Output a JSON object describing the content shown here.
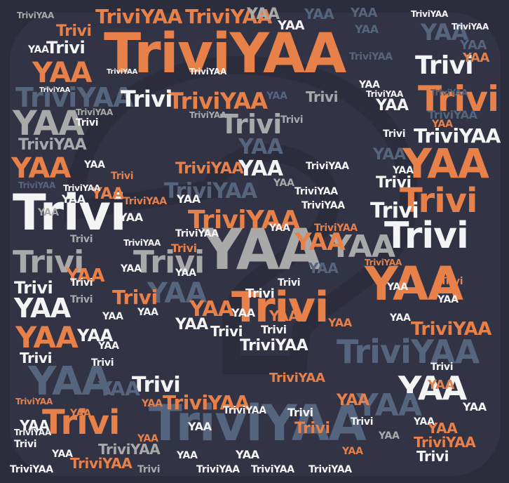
{
  "palette": {
    "background": "#2b2d3d",
    "shape": "#323446",
    "orange": "#e8804a",
    "white": "#f4f4f4",
    "gray": "#a9a9a9",
    "slate": "#56657e"
  },
  "words": {
    "w0": "TriviYAA",
    "w1": "Trivi",
    "w2": "YAA",
    "w3": "TriviYAA",
    "w4": "Trivi",
    "w5": "YAA",
    "w6": "Trivi",
    "w7": "YAA",
    "w8": "TriviYAA",
    "w9": "YAA",
    "w10": "Trivi",
    "w11": "YAA",
    "w12": "Trivi",
    "w13": "YAA",
    "w14": "YAA",
    "w15": "TriviYAA",
    "w16": "TriviYAA",
    "w17": "Trivi",
    "w18": "YAA",
    "w19": "TriviYAA",
    "w20": "TriviYAA",
    "w21": "YAA",
    "w22": "Trivi",
    "w23": "YAA",
    "w24": "YAA",
    "w25": "TriviYAA",
    "w26": "Trivi",
    "w27": "YAA",
    "w28": "Trivi",
    "w29": "YAA",
    "w30": "YAA",
    "w31": "TriviYAA",
    "w32": "Trivi",
    "w33": "YAA",
    "w34": "Trivi",
    "w35": "TriviYAA",
    "w36": "YAA",
    "w37": "YAA",
    "w38": "Trivi",
    "w39": "TriviYAA",
    "w40": "YAA",
    "w41": "TriviYAA",
    "w42": "Trivi",
    "w43": "YAA",
    "w44": "TriviYAA",
    "w45": "YAA",
    "w46": "Trivi",
    "w47": "YAA",
    "w48": "Trivi",
    "w49": "YAA",
    "w50": "TriviYAA",
    "w51": "Trivi",
    "w52": "YAA",
    "w53": "TriviYAA",
    "w54": "YAA",
    "w55": "TriviYAA",
    "w56": "Trivi",
    "w57": "YAA",
    "w58": "TriviYAA",
    "w59": "Trivi",
    "w60": "YAA",
    "w61": "YAA",
    "w62": "TriviYAA",
    "w63": "Trivi",
    "w64": "YAA",
    "w65": "TriviYAA",
    "w66": "YAA",
    "w67": "Trivi",
    "w68": "YAA",
    "w69": "Trivi",
    "w70": "TriviYAA",
    "w71": "YAA",
    "w72": "Trivi",
    "w73": "YAA",
    "w74": "YAA",
    "w75": "Trivi",
    "w76": "TriviYAA",
    "w77": "YAA",
    "w78": "Trivi",
    "w79": "TriviYAA",
    "w80": "YAA",
    "w81": "TriviYAA",
    "w82": "Trivi",
    "w83": "YAA",
    "w84": "YAA",
    "w85": "Trivi",
    "w86": "TriviYAA",
    "w87": "YAA",
    "w88": "Trivi",
    "w89": "TriviYAA",
    "w90": "Trivi",
    "w91": "YAA",
    "w92": "TriviYAA",
    "w93": "YAA",
    "w94": "Trivi",
    "w95": "TriviYAA",
    "w96": "TriviYAA",
    "w97": "YAA",
    "w98": "TriviYAA",
    "w99": "Trivi",
    "w100": "YAA",
    "w101": "TriviYAA",
    "w102": "YAA",
    "w103": "YAA",
    "w104": "TriviYAA",
    "w105": "TriviYAA",
    "w106": "YAA",
    "w107": "Trivi",
    "w108": "YAA",
    "w109": "YAA",
    "w110": "Trivi",
    "w111": "YAA",
    "w112": "TriviYAA",
    "w113": "YAA",
    "w114": "Trivi",
    "w115": "YAA",
    "w116": "YAA",
    "w117": "Trivi",
    "w118": "TriviYAA",
    "w119": "YAA",
    "w120": "TriviYAA",
    "w121": "TriviYAA",
    "w122": "YAA",
    "w123": "Trivi",
    "w124": "YAA",
    "w125": "TriviYAA",
    "w126": "TriviYAA",
    "w127": "TriviYAA",
    "w128": "YAA",
    "w129": "YAA",
    "w130": "TriviYAA",
    "w131": "Trivi",
    "w132": "YAA",
    "w133": "Trivi",
    "w134": "YAA",
    "w135": "Trivi",
    "w136": "YAA",
    "w137": "YAA",
    "w138": "TriviYAA",
    "w139": "TriviYAA",
    "w140": "TriviYAA",
    "w141": "TriviYAA",
    "w142": "TriviYAA",
    "w143": "TriviYAA",
    "w144": "TriviYAA",
    "w145": "YAA",
    "w146": "YAA",
    "w147": "YAA",
    "w148": "YAA",
    "w149": "Trivi",
    "w150": "YAA",
    "w151": "YAA",
    "w152": "TriviYAA",
    "w153": "YAA",
    "w154": "Trivi",
    "w155": "YAA",
    "w156": "YAA",
    "w157": "YAA",
    "w158": "Trivi",
    "w159": "YAA"
  }
}
